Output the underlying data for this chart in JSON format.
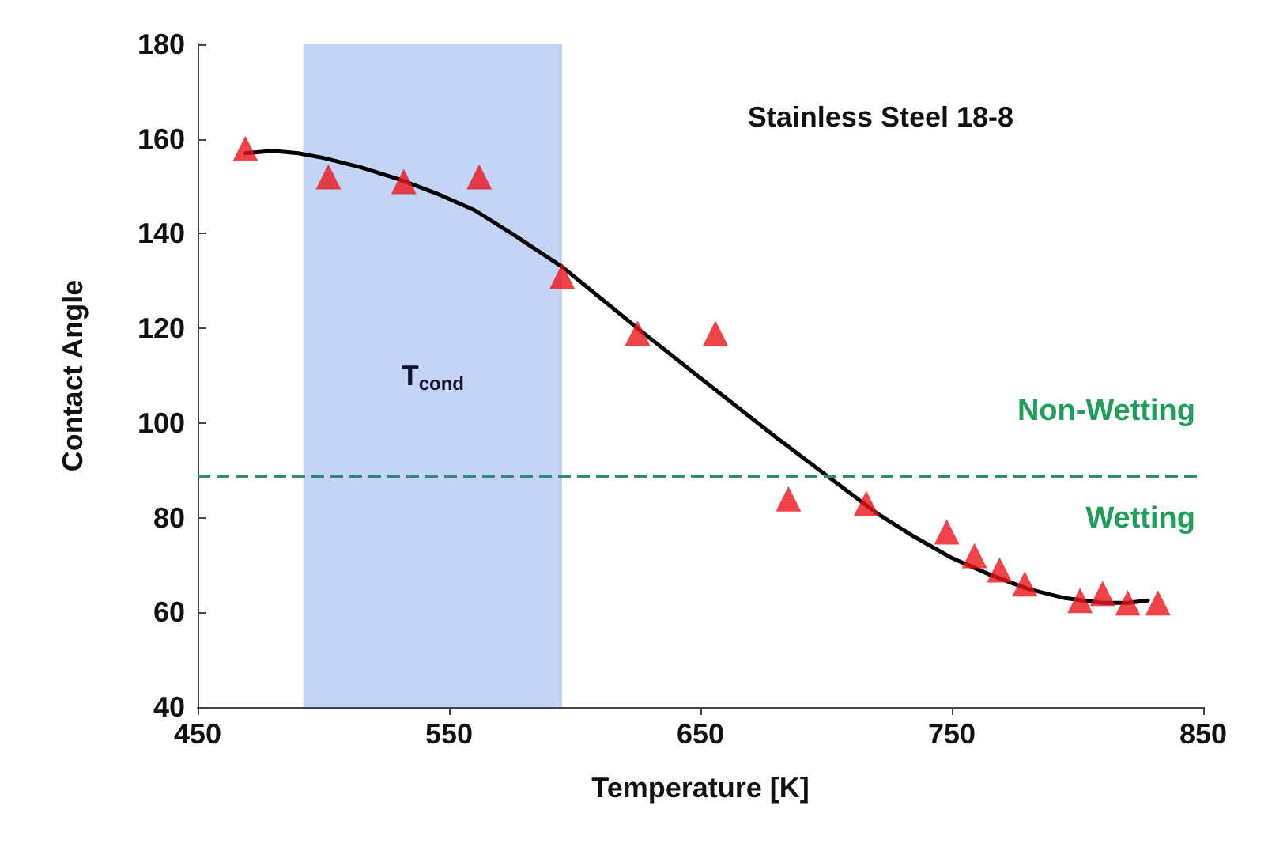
{
  "chart_data": {
    "type": "scatter",
    "title": "Stainless Steel 18-8",
    "xlabel": "Temperature [K]",
    "ylabel": "Contact Angle",
    "xlim": [
      450,
      850
    ],
    "xticks": [
      450,
      550,
      650,
      750,
      850
    ],
    "ylim": [
      40,
      180
    ],
    "yticks": [
      40,
      60,
      80,
      100,
      120,
      140,
      160,
      180
    ],
    "grid": false,
    "marker": "triangle",
    "series": [
      {
        "type": "scatter",
        "color": "#e8141c",
        "x": [
          469,
          502,
          532,
          562,
          595,
          625,
          656,
          685,
          716,
          748,
          759,
          769,
          779,
          801,
          810,
          820,
          832
        ],
        "values": [
          158,
          152,
          151,
          152,
          131,
          119,
          119,
          84,
          83,
          77,
          72,
          69,
          66,
          62.5,
          64,
          62,
          62
        ]
      },
      {
        "type": "line",
        "color": "#000000",
        "marker": "none",
        "line_style": "solid",
        "x": [
          469,
          480,
          490,
          500,
          515,
          530,
          545,
          560,
          575,
          595,
          610,
          625,
          650,
          680,
          700,
          720,
          735,
          750,
          765,
          780,
          795,
          810,
          820,
          828
        ],
        "values": [
          157,
          157.5,
          157,
          156,
          154,
          151.5,
          148.5,
          145,
          140,
          133,
          126.5,
          120,
          109.5,
          97,
          89,
          81,
          76,
          71.5,
          68,
          65,
          63,
          62,
          62,
          62.5
        ]
      }
    ],
    "bands": [
      {
        "axis": "x",
        "from": 492,
        "to": 595,
        "label": "T$_{cond}$",
        "color": "#c4d4f7"
      }
    ],
    "ref_lines": [
      {
        "axis": "y",
        "value": 89,
        "color": "#2e8b6e",
        "line_style": "dashed"
      }
    ],
    "annotations": [
      "Non-Wetting",
      "Wetting"
    ]
  }
}
